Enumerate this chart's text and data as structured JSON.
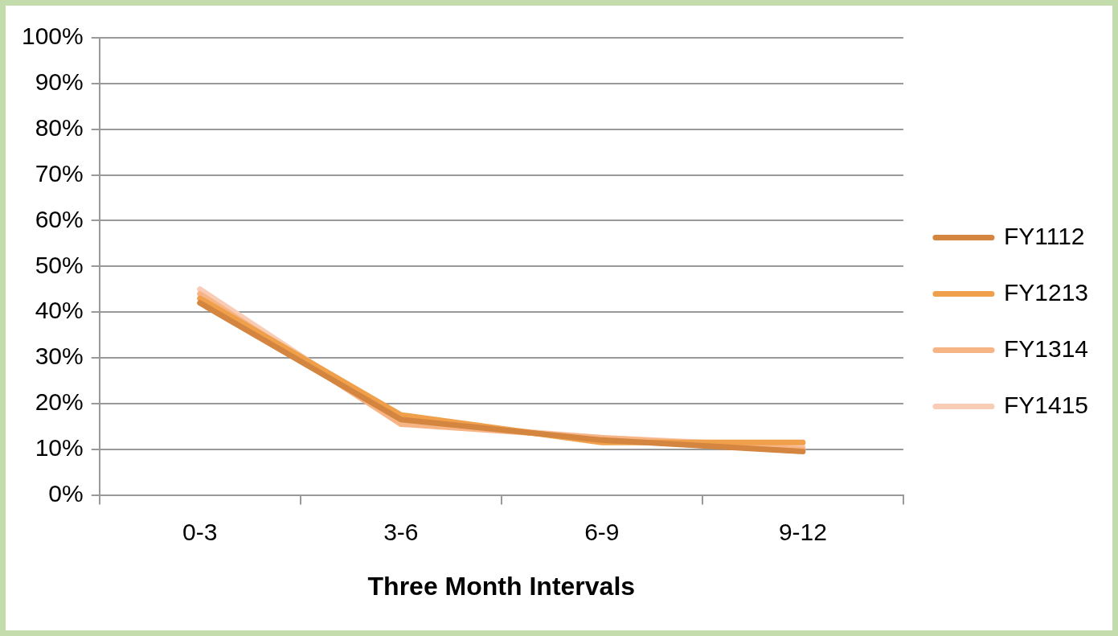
{
  "chart_data": {
    "type": "line",
    "xlabel": "Three Month Intervals",
    "categories": [
      "0-3",
      "3-6",
      "6-9",
      "9-12"
    ],
    "series": [
      {
        "name": "FY1112",
        "color": "#d4853f",
        "values": [
          42,
          16.5,
          12,
          9.5
        ]
      },
      {
        "name": "FY1213",
        "color": "#f0a04b",
        "values": [
          43,
          17.5,
          11.5,
          11.5
        ]
      },
      {
        "name": "FY1314",
        "color": "#f7b586",
        "values": [
          44,
          15.5,
          12.5,
          10
        ]
      },
      {
        "name": "FY1415",
        "color": "#f9cdb5",
        "values": [
          45,
          16,
          12.5,
          10.5
        ]
      }
    ],
    "ylim": [
      0,
      100
    ],
    "yticks": [
      {
        "value": 0,
        "label": "0%"
      },
      {
        "value": 10,
        "label": "10%"
      },
      {
        "value": 20,
        "label": "20%"
      },
      {
        "value": 30,
        "label": "30%"
      },
      {
        "value": 40,
        "label": "40%"
      },
      {
        "value": 50,
        "label": "50%"
      },
      {
        "value": 60,
        "label": "60%"
      },
      {
        "value": 70,
        "label": "70%"
      },
      {
        "value": 80,
        "label": "80%"
      },
      {
        "value": 90,
        "label": "90%"
      },
      {
        "value": 100,
        "label": "100%"
      }
    ],
    "grid": "y",
    "legend": "right",
    "marker": "none",
    "line_style": "solid"
  }
}
